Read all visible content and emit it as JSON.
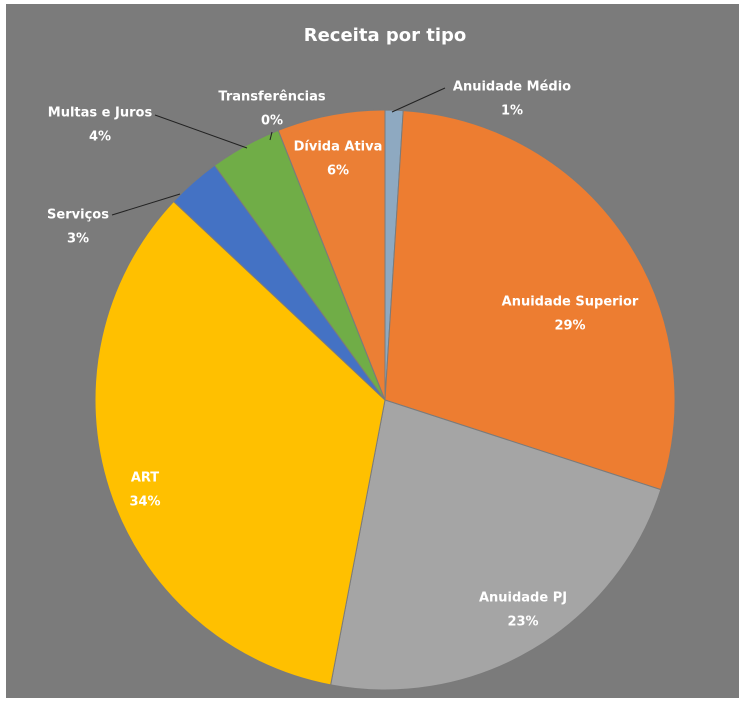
{
  "chart_data": {
    "type": "pie",
    "title": "Receita por tipo",
    "categories": [
      "Anuidade Médio",
      "Anuidade Superior",
      "Anuidade PJ",
      "ART",
      "Serviços",
      "Multas e Juros",
      "Transferências",
      "Dívida Ativa"
    ],
    "values": [
      1,
      29,
      23,
      34,
      3,
      4,
      0,
      6
    ],
    "value_labels": [
      "1%",
      "29%",
      "23%",
      "34%",
      "3%",
      "4%",
      "0%",
      "6%"
    ],
    "colors": [
      "#8ea9c1",
      "#ed7d31",
      "#a5a5a5",
      "#ffc000",
      "#4472c4",
      "#70ad47",
      "#255e91",
      "#eb7f35"
    ]
  }
}
